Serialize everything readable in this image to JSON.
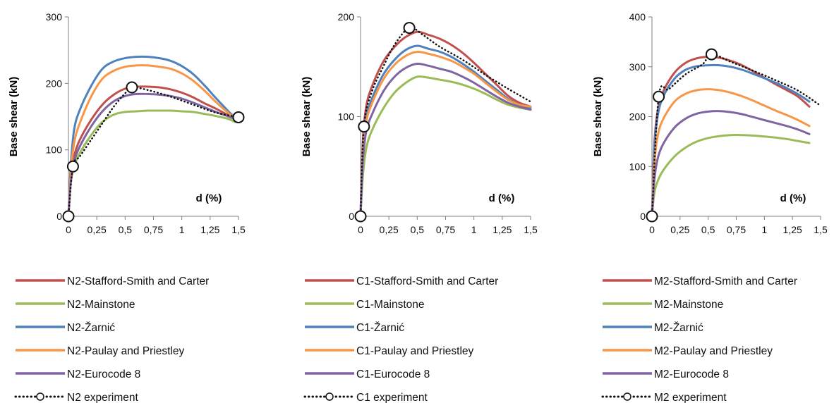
{
  "chart_data": [
    {
      "type": "line",
      "ylabel": "Base shear  (kN)",
      "xlabel": "d (%)",
      "xlim": [
        0,
        1.5
      ],
      "ylim": [
        0,
        300
      ],
      "xticks": [
        "0",
        "0,25",
        "0,5",
        "0,75",
        "1",
        "1,25",
        "1,5"
      ],
      "yticks": [
        "0",
        "100",
        "200",
        "300"
      ],
      "series": [
        {
          "name": "N2-Stafford-Smith and Carter",
          "color": "#c0504d",
          "style": "solid",
          "x": [
            0,
            0.02,
            0.05,
            0.1,
            0.2,
            0.3,
            0.4,
            0.5,
            0.6,
            0.7,
            0.8,
            0.9,
            1.0,
            1.1,
            1.2,
            1.3,
            1.4,
            1.47
          ],
          "y": [
            0,
            55,
            90,
            115,
            145,
            168,
            183,
            192,
            195,
            195,
            194,
            191,
            186,
            179,
            170,
            162,
            153,
            147
          ]
        },
        {
          "name": "N2-Mainstone",
          "color": "#9bbb59",
          "style": "solid",
          "x": [
            0,
            0.02,
            0.05,
            0.1,
            0.2,
            0.3,
            0.4,
            0.5,
            0.6,
            0.7,
            0.8,
            0.9,
            1.0,
            1.1,
            1.2,
            1.3,
            1.4,
            1.47
          ],
          "y": [
            0,
            50,
            75,
            95,
            122,
            142,
            153,
            157,
            158,
            159,
            159,
            159,
            158,
            157,
            154,
            151,
            147,
            142
          ]
        },
        {
          "name": "N2-Žarnić",
          "color": "#4f81bd",
          "style": "solid",
          "x": [
            0,
            0.02,
            0.05,
            0.1,
            0.2,
            0.3,
            0.4,
            0.5,
            0.6,
            0.7,
            0.8,
            0.9,
            1.0,
            1.1,
            1.2,
            1.3,
            1.4,
            1.47
          ],
          "y": [
            0,
            75,
            130,
            160,
            196,
            222,
            233,
            238,
            240,
            240,
            238,
            234,
            226,
            214,
            197,
            178,
            160,
            148
          ]
        },
        {
          "name": "N2-Paulay and Priestley",
          "color": "#f79646",
          "style": "solid",
          "x": [
            0,
            0.02,
            0.05,
            0.1,
            0.2,
            0.3,
            0.4,
            0.5,
            0.6,
            0.7,
            0.8,
            0.9,
            1.0,
            1.1,
            1.2,
            1.3,
            1.4,
            1.47
          ],
          "y": [
            0,
            65,
            110,
            140,
            180,
            207,
            219,
            225,
            227,
            227,
            225,
            222,
            215,
            204,
            189,
            172,
            157,
            147
          ]
        },
        {
          "name": "N2-Eurocode 8",
          "color": "#8064a2",
          "style": "solid",
          "x": [
            0,
            0.02,
            0.05,
            0.1,
            0.2,
            0.3,
            0.4,
            0.5,
            0.6,
            0.7,
            0.8,
            0.9,
            1.0,
            1.1,
            1.2,
            1.3,
            1.4,
            1.47
          ],
          "y": [
            0,
            50,
            82,
            105,
            135,
            158,
            173,
            181,
            184,
            184,
            183,
            181,
            177,
            171,
            164,
            157,
            151,
            146
          ]
        },
        {
          "name": "N2 experiment",
          "color": "#111111",
          "style": "dotted",
          "x": [
            0,
            0.04,
            0.1,
            0.2,
            0.3,
            0.4,
            0.5,
            0.56,
            0.7,
            0.9,
            1.1,
            1.3,
            1.5
          ],
          "y": [
            0,
            75,
            90,
            115,
            140,
            165,
            185,
            194,
            190,
            180,
            168,
            156,
            149
          ]
        }
      ],
      "markers": {
        "x": [
          0,
          0.04,
          0.56,
          1.5
        ],
        "y": [
          0,
          75,
          194,
          149
        ]
      }
    },
    {
      "type": "line",
      "ylabel": "Base shear  (kN)",
      "xlabel": "d (%)",
      "xlim": [
        0,
        1.5
      ],
      "ylim": [
        0,
        200
      ],
      "xticks": [
        "0",
        "0,25",
        "0,5",
        "0,75",
        "1",
        "1,25",
        "1,5"
      ],
      "yticks": [
        "0",
        "100",
        "200"
      ],
      "series": [
        {
          "name": "C1-Stafford-Smith and Carter",
          "color": "#c0504d",
          "style": "solid",
          "x": [
            0,
            0.02,
            0.05,
            0.1,
            0.2,
            0.3,
            0.4,
            0.5,
            0.6,
            0.7,
            0.8,
            0.9,
            1.0,
            1.1,
            1.2,
            1.3,
            1.4,
            1.5
          ],
          "y": [
            0,
            75,
            110,
            130,
            155,
            170,
            180,
            185,
            182,
            178,
            172,
            164,
            154,
            143,
            132,
            121,
            114,
            110
          ]
        },
        {
          "name": "C1-Mainstone",
          "color": "#9bbb59",
          "style": "solid",
          "x": [
            0,
            0.02,
            0.05,
            0.1,
            0.2,
            0.3,
            0.4,
            0.5,
            0.6,
            0.7,
            0.8,
            0.9,
            1.0,
            1.1,
            1.2,
            1.3,
            1.4,
            1.5
          ],
          "y": [
            0,
            40,
            68,
            86,
            108,
            124,
            134,
            140,
            139,
            137,
            135,
            132,
            128,
            123,
            117,
            112,
            109,
            107
          ]
        },
        {
          "name": "C1-Žarnić",
          "color": "#4f81bd",
          "style": "solid",
          "x": [
            0,
            0.02,
            0.05,
            0.1,
            0.2,
            0.3,
            0.4,
            0.5,
            0.6,
            0.7,
            0.8,
            0.9,
            1.0,
            1.1,
            1.2,
            1.3,
            1.4,
            1.5
          ],
          "y": [
            0,
            70,
            100,
            118,
            142,
            157,
            167,
            171,
            168,
            165,
            160,
            153,
            145,
            136,
            127,
            118,
            112,
            109
          ]
        },
        {
          "name": "C1-Paulay and Priestley",
          "color": "#f79646",
          "style": "solid",
          "x": [
            0,
            0.02,
            0.05,
            0.1,
            0.2,
            0.3,
            0.4,
            0.5,
            0.6,
            0.7,
            0.8,
            0.9,
            1.0,
            1.1,
            1.2,
            1.3,
            1.4,
            1.5
          ],
          "y": [
            0,
            65,
            95,
            113,
            137,
            152,
            161,
            165,
            163,
            160,
            156,
            150,
            143,
            134,
            125,
            117,
            112,
            110
          ]
        },
        {
          "name": "C1-Eurocode 8",
          "color": "#8064a2",
          "style": "solid",
          "x": [
            0,
            0.02,
            0.05,
            0.1,
            0.2,
            0.3,
            0.4,
            0.5,
            0.6,
            0.7,
            0.8,
            0.9,
            1.0,
            1.1,
            1.2,
            1.3,
            1.4,
            1.5
          ],
          "y": [
            0,
            55,
            85,
            102,
            125,
            140,
            149,
            153,
            151,
            148,
            145,
            140,
            134,
            127,
            120,
            114,
            110,
            107
          ]
        },
        {
          "name": "C1 experiment",
          "color": "#111111",
          "style": "dotted",
          "x": [
            0,
            0.03,
            0.1,
            0.2,
            0.3,
            0.43,
            0.55,
            0.7,
            0.9,
            1.1,
            1.3,
            1.5
          ],
          "y": [
            0,
            90,
            125,
            150,
            172,
            189,
            182,
            170,
            157,
            142,
            128,
            115
          ]
        }
      ],
      "markers": {
        "x": [
          0,
          0.03,
          0.43
        ],
        "y": [
          0,
          90,
          189
        ]
      }
    },
    {
      "type": "line",
      "ylabel": "Base shear  (kN)",
      "xlabel": "d (%)",
      "xlim": [
        0,
        1.5
      ],
      "ylim": [
        0,
        400
      ],
      "xticks": [
        "0",
        "0,25",
        "0,5",
        "0,75",
        "1",
        "1,25",
        "1,5"
      ],
      "yticks": [
        "0",
        "100",
        "200",
        "300",
        "400"
      ],
      "series": [
        {
          "name": "M2-Stafford-Smith and Carter",
          "color": "#c0504d",
          "style": "solid",
          "x": [
            0,
            0.02,
            0.05,
            0.1,
            0.2,
            0.3,
            0.4,
            0.5,
            0.6,
            0.7,
            0.8,
            0.9,
            1.0,
            1.1,
            1.2,
            1.3,
            1.4
          ],
          "y": [
            0,
            140,
            210,
            250,
            288,
            308,
            317,
            320,
            318,
            312,
            303,
            291,
            278,
            265,
            253,
            240,
            220
          ]
        },
        {
          "name": "M2-Mainstone",
          "color": "#9bbb59",
          "style": "solid",
          "x": [
            0,
            0.02,
            0.05,
            0.1,
            0.2,
            0.3,
            0.4,
            0.5,
            0.6,
            0.7,
            0.8,
            0.9,
            1.0,
            1.1,
            1.2,
            1.3,
            1.4
          ],
          "y": [
            0,
            45,
            70,
            92,
            120,
            138,
            150,
            157,
            161,
            163,
            163,
            162,
            160,
            158,
            155,
            151,
            147
          ]
        },
        {
          "name": "M2-Žarnić",
          "color": "#4f81bd",
          "style": "solid",
          "x": [
            0,
            0.02,
            0.05,
            0.1,
            0.2,
            0.3,
            0.4,
            0.5,
            0.6,
            0.7,
            0.8,
            0.9,
            1.0,
            1.1,
            1.2,
            1.3,
            1.4
          ],
          "y": [
            0,
            130,
            200,
            240,
            276,
            294,
            301,
            303,
            303,
            300,
            294,
            286,
            277,
            268,
            257,
            245,
            230
          ]
        },
        {
          "name": "M2-Paulay and Priestley",
          "color": "#f79646",
          "style": "solid",
          "x": [
            0,
            0.02,
            0.05,
            0.1,
            0.2,
            0.3,
            0.4,
            0.5,
            0.6,
            0.7,
            0.8,
            0.9,
            1.0,
            1.1,
            1.2,
            1.3,
            1.4
          ],
          "y": [
            0,
            100,
            160,
            195,
            230,
            246,
            253,
            255,
            253,
            248,
            241,
            232,
            222,
            212,
            203,
            193,
            181
          ]
        },
        {
          "name": "M2-Eurocode 8",
          "color": "#8064a2",
          "style": "solid",
          "x": [
            0,
            0.02,
            0.05,
            0.1,
            0.2,
            0.3,
            0.4,
            0.5,
            0.6,
            0.7,
            0.8,
            0.9,
            1.0,
            1.1,
            1.2,
            1.3,
            1.4
          ],
          "y": [
            0,
            70,
            115,
            145,
            178,
            196,
            206,
            210,
            211,
            209,
            205,
            199,
            193,
            187,
            181,
            174,
            165
          ]
        },
        {
          "name": "M2 experiment",
          "color": "#111111",
          "style": "dotted",
          "x": [
            0,
            0.06,
            0.15,
            0.3,
            0.45,
            0.53,
            0.7,
            0.9,
            1.1,
            1.3,
            1.5
          ],
          "y": [
            0,
            240,
            255,
            285,
            305,
            325,
            310,
            292,
            273,
            252,
            222
          ]
        }
      ],
      "markers": {
        "x": [
          0,
          0.06,
          0.53
        ],
        "y": [
          0,
          240,
          325
        ]
      }
    }
  ]
}
